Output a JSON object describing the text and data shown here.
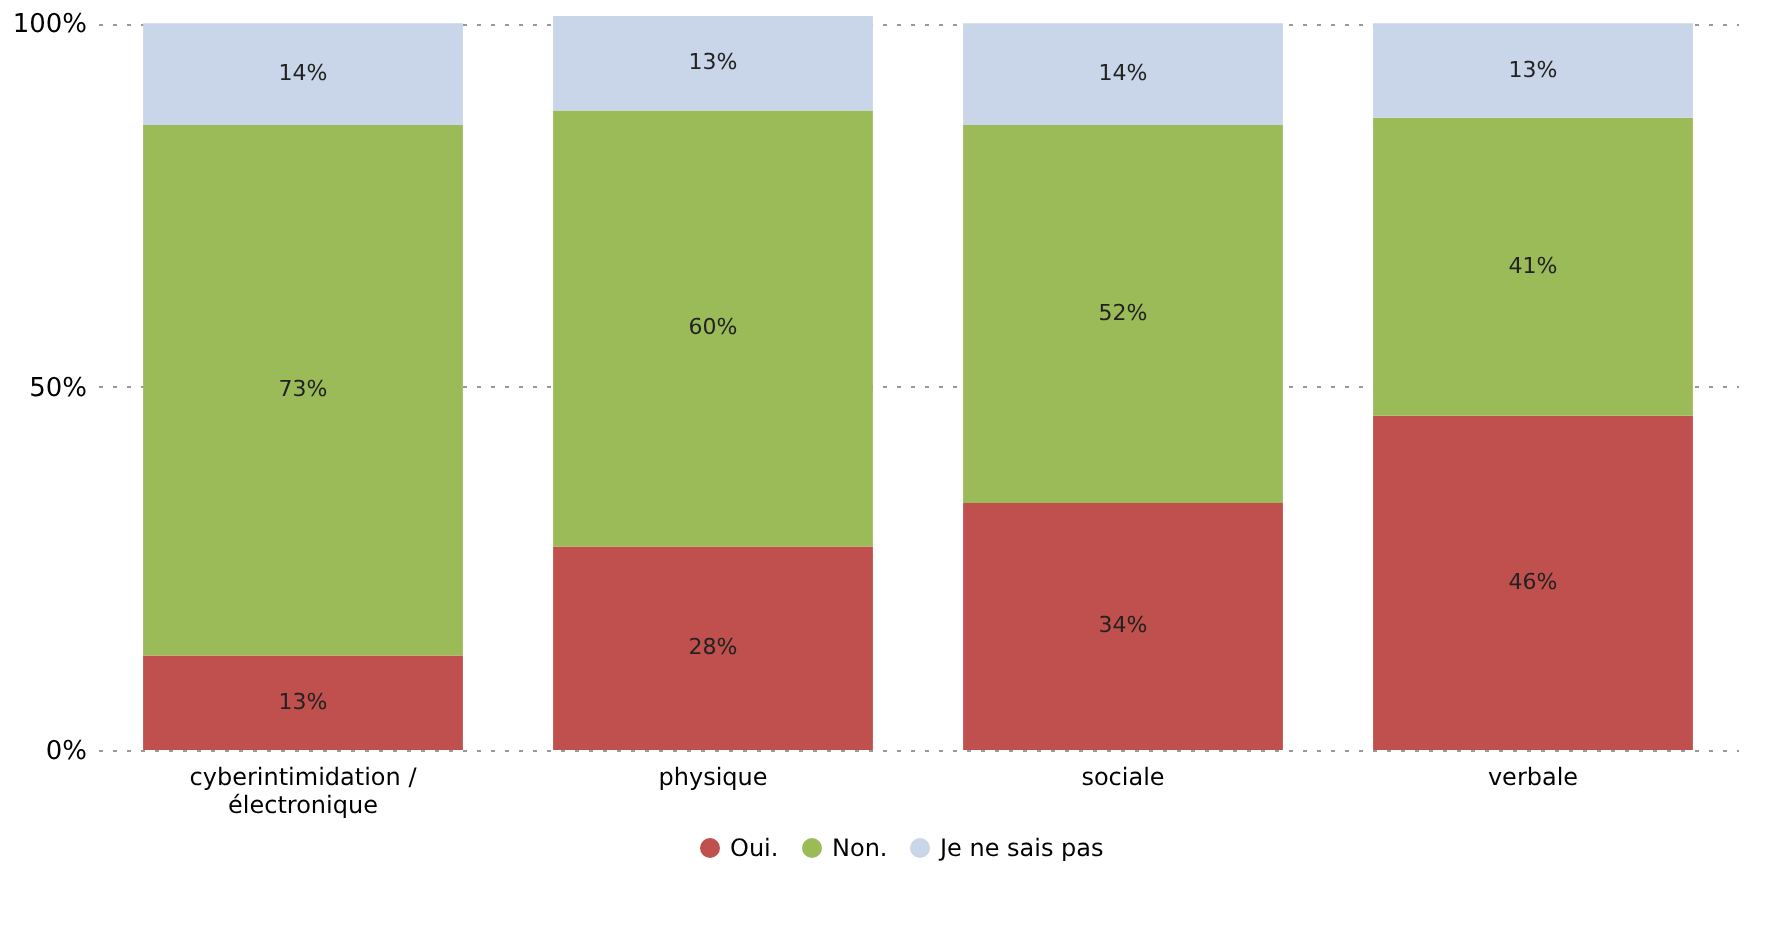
{
  "chart_data": {
    "type": "bar",
    "stacked": true,
    "categories": [
      "cyberintimidation / électronique",
      "physique",
      "sociale",
      "verbale"
    ],
    "series": [
      {
        "name": "Oui.",
        "color": "#c0504d",
        "values": [
          13,
          28,
          34,
          46
        ],
        "value_labels": [
          "13%",
          "28%",
          "34%",
          "46%"
        ]
      },
      {
        "name": "Non.",
        "color": "#9bbb59",
        "values": [
          73,
          60,
          52,
          41
        ],
        "value_labels": [
          "73%",
          "60%",
          "52%",
          "41%"
        ]
      },
      {
        "name": "Je ne sais pas",
        "color": "#c9d5e8",
        "values": [
          14,
          13,
          14,
          13
        ],
        "value_labels": [
          "14%",
          "13%",
          "14%",
          "13%"
        ]
      }
    ],
    "ylim": [
      0,
      101
    ],
    "yticks": [
      {
        "value": 0,
        "label": "0%"
      },
      {
        "value": 50,
        "label": "50%"
      },
      {
        "value": 100,
        "label": "100%"
      }
    ],
    "grid": "y",
    "legend": "bottom"
  }
}
